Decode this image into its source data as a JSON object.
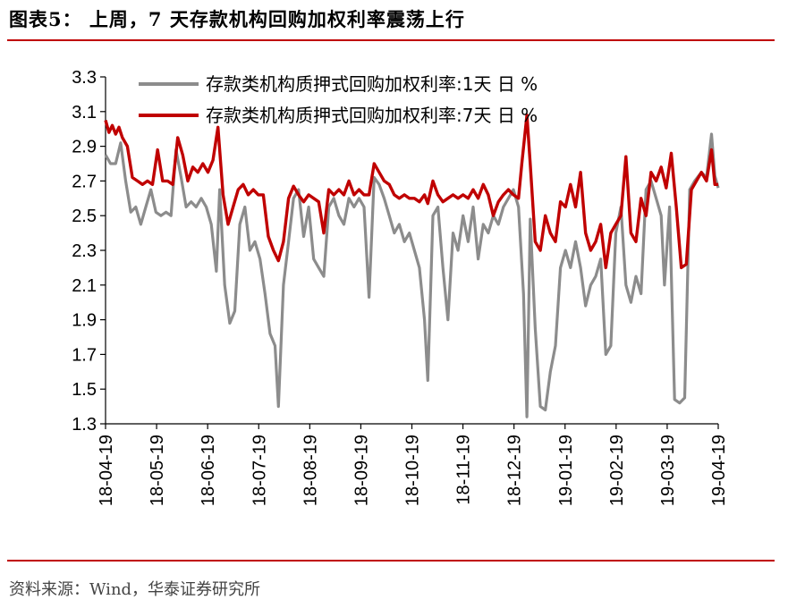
{
  "figure": {
    "title": "图表5： 上周，7 天存款机构回购加权利率震荡上行",
    "source": "资料来源：Wind，华泰证券研究所"
  },
  "colors": {
    "accent_rule": "#c00000",
    "series_1d": "#8c8c8c",
    "series_7d": "#c00000"
  },
  "chart_data": {
    "type": "line",
    "title": "",
    "xlabel": "",
    "ylabel": "",
    "ylim": [
      1.3,
      3.3
    ],
    "yticks": [
      "1.3",
      "1.5",
      "1.7",
      "1.9",
      "2.1",
      "2.3",
      "2.5",
      "2.7",
      "2.9",
      "3.1",
      "3.3"
    ],
    "x_range": [
      "2018-04-19",
      "2019-04-19"
    ],
    "xticks": [
      "18-04-19",
      "18-05-19",
      "18-06-19",
      "18-07-19",
      "18-08-19",
      "18-09-19",
      "18-10-19",
      "18-11-19",
      "18-12-19",
      "19-01-19",
      "19-02-19",
      "19-03-19",
      "19-04-19"
    ],
    "grid": false,
    "legend_position": "top",
    "series": [
      {
        "name": "存款类机构质押式回购加权利率:1天 日 %",
        "color": "#8c8c8c",
        "points": [
          [
            "2018-04-19",
            2.85
          ],
          [
            "2018-04-22",
            2.8
          ],
          [
            "2018-04-25",
            2.8
          ],
          [
            "2018-04-28",
            2.92
          ],
          [
            "2018-05-01",
            2.7
          ],
          [
            "2018-05-04",
            2.52
          ],
          [
            "2018-05-07",
            2.55
          ],
          [
            "2018-05-10",
            2.45
          ],
          [
            "2018-05-13",
            2.55
          ],
          [
            "2018-05-16",
            2.65
          ],
          [
            "2018-05-19",
            2.52
          ],
          [
            "2018-05-22",
            2.5
          ],
          [
            "2018-05-25",
            2.52
          ],
          [
            "2018-05-28",
            2.5
          ],
          [
            "2018-05-31",
            2.88
          ],
          [
            "2018-06-03",
            2.72
          ],
          [
            "2018-06-06",
            2.55
          ],
          [
            "2018-06-09",
            2.58
          ],
          [
            "2018-06-12",
            2.55
          ],
          [
            "2018-06-15",
            2.6
          ],
          [
            "2018-06-18",
            2.55
          ],
          [
            "2018-06-21",
            2.45
          ],
          [
            "2018-06-24",
            2.18
          ],
          [
            "2018-06-26",
            2.65
          ],
          [
            "2018-06-29",
            2.1
          ],
          [
            "2018-07-02",
            1.88
          ],
          [
            "2018-07-05",
            1.95
          ],
          [
            "2018-07-08",
            2.45
          ],
          [
            "2018-07-11",
            2.55
          ],
          [
            "2018-07-14",
            2.3
          ],
          [
            "2018-07-17",
            2.35
          ],
          [
            "2018-07-20",
            2.25
          ],
          [
            "2018-07-23",
            2.05
          ],
          [
            "2018-07-26",
            1.82
          ],
          [
            "2018-07-29",
            1.75
          ],
          [
            "2018-07-31",
            1.4
          ],
          [
            "2018-08-03",
            2.1
          ],
          [
            "2018-08-06",
            2.35
          ],
          [
            "2018-08-09",
            2.6
          ],
          [
            "2018-08-12",
            2.65
          ],
          [
            "2018-08-15",
            2.38
          ],
          [
            "2018-08-18",
            2.55
          ],
          [
            "2018-08-21",
            2.25
          ],
          [
            "2018-08-24",
            2.2
          ],
          [
            "2018-08-27",
            2.15
          ],
          [
            "2018-08-30",
            2.55
          ],
          [
            "2018-09-02",
            2.6
          ],
          [
            "2018-09-05",
            2.5
          ],
          [
            "2018-09-08",
            2.45
          ],
          [
            "2018-09-11",
            2.6
          ],
          [
            "2018-09-14",
            2.55
          ],
          [
            "2018-09-17",
            2.6
          ],
          [
            "2018-09-20",
            2.55
          ],
          [
            "2018-09-23",
            2.03
          ],
          [
            "2018-09-26",
            2.72
          ],
          [
            "2018-09-29",
            2.68
          ],
          [
            "2018-10-02",
            2.6
          ],
          [
            "2018-10-05",
            2.5
          ],
          [
            "2018-10-08",
            2.4
          ],
          [
            "2018-10-11",
            2.45
          ],
          [
            "2018-10-14",
            2.35
          ],
          [
            "2018-10-17",
            2.4
          ],
          [
            "2018-10-20",
            2.3
          ],
          [
            "2018-10-23",
            2.2
          ],
          [
            "2018-10-26",
            1.9
          ],
          [
            "2018-10-28",
            1.55
          ],
          [
            "2018-10-31",
            2.5
          ],
          [
            "2018-11-03",
            2.55
          ],
          [
            "2018-11-06",
            2.2
          ],
          [
            "2018-11-09",
            1.9
          ],
          [
            "2018-11-12",
            2.4
          ],
          [
            "2018-11-15",
            2.3
          ],
          [
            "2018-11-18",
            2.5
          ],
          [
            "2018-11-21",
            2.35
          ],
          [
            "2018-11-24",
            2.55
          ],
          [
            "2018-11-27",
            2.25
          ],
          [
            "2018-11-30",
            2.45
          ],
          [
            "2018-12-03",
            2.4
          ],
          [
            "2018-12-06",
            2.5
          ],
          [
            "2018-12-09",
            2.45
          ],
          [
            "2018-12-12",
            2.55
          ],
          [
            "2018-12-15",
            2.6
          ],
          [
            "2018-12-18",
            2.65
          ],
          [
            "2018-12-21",
            2.55
          ],
          [
            "2018-12-24",
            2.05
          ],
          [
            "2018-12-26",
            1.34
          ],
          [
            "2018-12-28",
            2.48
          ],
          [
            "2018-12-31",
            1.85
          ],
          [
            "2019-01-03",
            1.4
          ],
          [
            "2019-01-06",
            1.38
          ],
          [
            "2019-01-09",
            1.6
          ],
          [
            "2019-01-12",
            1.75
          ],
          [
            "2019-01-15",
            2.2
          ],
          [
            "2019-01-18",
            2.3
          ],
          [
            "2019-01-21",
            2.2
          ],
          [
            "2019-01-24",
            2.35
          ],
          [
            "2019-01-27",
            2.2
          ],
          [
            "2019-01-30",
            1.98
          ],
          [
            "2019-02-02",
            2.1
          ],
          [
            "2019-02-05",
            2.15
          ],
          [
            "2019-02-08",
            2.25
          ],
          [
            "2019-02-11",
            1.7
          ],
          [
            "2019-02-14",
            1.75
          ],
          [
            "2019-02-17",
            2.4
          ],
          [
            "2019-02-20",
            2.55
          ],
          [
            "2019-02-23",
            2.1
          ],
          [
            "2019-02-26",
            2.0
          ],
          [
            "2019-03-01",
            2.15
          ],
          [
            "2019-03-04",
            2.05
          ],
          [
            "2019-03-07",
            2.65
          ],
          [
            "2019-03-10",
            2.7
          ],
          [
            "2019-03-13",
            2.6
          ],
          [
            "2019-03-16",
            2.5
          ],
          [
            "2019-03-18",
            2.1
          ],
          [
            "2019-03-21",
            2.55
          ],
          [
            "2019-03-24",
            1.44
          ],
          [
            "2019-03-27",
            1.42
          ],
          [
            "2019-03-30",
            1.45
          ],
          [
            "2019-04-02",
            2.65
          ],
          [
            "2019-04-05",
            2.7
          ],
          [
            "2019-04-09",
            2.75
          ],
          [
            "2019-04-12",
            2.72
          ],
          [
            "2019-04-15",
            2.97
          ],
          [
            "2019-04-17",
            2.73
          ],
          [
            "2019-04-19",
            2.66
          ]
        ]
      },
      {
        "name": "存款类机构质押式回购加权利率:7天 日 %",
        "color": "#c00000",
        "points": [
          [
            "2018-04-19",
            3.05
          ],
          [
            "2018-04-21",
            2.98
          ],
          [
            "2018-04-23",
            3.02
          ],
          [
            "2018-04-25",
            2.97
          ],
          [
            "2018-04-27",
            3.01
          ],
          [
            "2018-04-29",
            2.95
          ],
          [
            "2018-05-02",
            2.9
          ],
          [
            "2018-05-05",
            2.72
          ],
          [
            "2018-05-08",
            2.7
          ],
          [
            "2018-05-11",
            2.68
          ],
          [
            "2018-05-14",
            2.7
          ],
          [
            "2018-05-17",
            2.68
          ],
          [
            "2018-05-20",
            2.88
          ],
          [
            "2018-05-23",
            2.7
          ],
          [
            "2018-05-26",
            2.7
          ],
          [
            "2018-05-29",
            2.68
          ],
          [
            "2018-06-01",
            2.95
          ],
          [
            "2018-06-04",
            2.85
          ],
          [
            "2018-06-07",
            2.7
          ],
          [
            "2018-06-10",
            2.78
          ],
          [
            "2018-06-13",
            2.75
          ],
          [
            "2018-06-16",
            2.8
          ],
          [
            "2018-06-19",
            2.75
          ],
          [
            "2018-06-22",
            2.82
          ],
          [
            "2018-06-25",
            3.01
          ],
          [
            "2018-06-28",
            2.62
          ],
          [
            "2018-07-01",
            2.45
          ],
          [
            "2018-07-04",
            2.55
          ],
          [
            "2018-07-07",
            2.65
          ],
          [
            "2018-07-10",
            2.68
          ],
          [
            "2018-07-13",
            2.62
          ],
          [
            "2018-07-16",
            2.65
          ],
          [
            "2018-07-19",
            2.62
          ],
          [
            "2018-07-22",
            2.62
          ],
          [
            "2018-07-25",
            2.38
          ],
          [
            "2018-07-28",
            2.3
          ],
          [
            "2018-07-31",
            2.24
          ],
          [
            "2018-08-03",
            2.35
          ],
          [
            "2018-08-06",
            2.6
          ],
          [
            "2018-08-09",
            2.67
          ],
          [
            "2018-08-12",
            2.62
          ],
          [
            "2018-08-15",
            2.58
          ],
          [
            "2018-08-18",
            2.62
          ],
          [
            "2018-08-21",
            2.6
          ],
          [
            "2018-08-24",
            2.58
          ],
          [
            "2018-08-27",
            2.4
          ],
          [
            "2018-08-30",
            2.65
          ],
          [
            "2018-09-02",
            2.62
          ],
          [
            "2018-09-05",
            2.65
          ],
          [
            "2018-09-08",
            2.62
          ],
          [
            "2018-09-11",
            2.7
          ],
          [
            "2018-09-14",
            2.62
          ],
          [
            "2018-09-17",
            2.65
          ],
          [
            "2018-09-20",
            2.62
          ],
          [
            "2018-09-23",
            2.62
          ],
          [
            "2018-09-26",
            2.8
          ],
          [
            "2018-09-29",
            2.75
          ],
          [
            "2018-10-02",
            2.7
          ],
          [
            "2018-10-05",
            2.68
          ],
          [
            "2018-10-08",
            2.62
          ],
          [
            "2018-10-11",
            2.6
          ],
          [
            "2018-10-14",
            2.62
          ],
          [
            "2018-10-17",
            2.6
          ],
          [
            "2018-10-20",
            2.6
          ],
          [
            "2018-10-23",
            2.58
          ],
          [
            "2018-10-26",
            2.62
          ],
          [
            "2018-10-28",
            2.57
          ],
          [
            "2018-10-31",
            2.7
          ],
          [
            "2018-11-03",
            2.62
          ],
          [
            "2018-11-06",
            2.58
          ],
          [
            "2018-11-09",
            2.6
          ],
          [
            "2018-11-12",
            2.62
          ],
          [
            "2018-11-15",
            2.6
          ],
          [
            "2018-11-18",
            2.62
          ],
          [
            "2018-11-21",
            2.6
          ],
          [
            "2018-11-24",
            2.65
          ],
          [
            "2018-11-27",
            2.6
          ],
          [
            "2018-11-30",
            2.68
          ],
          [
            "2018-12-03",
            2.62
          ],
          [
            "2018-12-06",
            2.5
          ],
          [
            "2018-12-09",
            2.58
          ],
          [
            "2018-12-12",
            2.62
          ],
          [
            "2018-12-15",
            2.65
          ],
          [
            "2018-12-18",
            2.62
          ],
          [
            "2018-12-21",
            2.6
          ],
          [
            "2018-12-23",
            2.8
          ],
          [
            "2018-12-26",
            3.08
          ],
          [
            "2018-12-28",
            2.8
          ],
          [
            "2018-12-31",
            2.35
          ],
          [
            "2019-01-03",
            2.3
          ],
          [
            "2019-01-06",
            2.5
          ],
          [
            "2019-01-09",
            2.4
          ],
          [
            "2019-01-12",
            2.35
          ],
          [
            "2019-01-15",
            2.58
          ],
          [
            "2019-01-18",
            2.55
          ],
          [
            "2019-01-21",
            2.68
          ],
          [
            "2019-01-24",
            2.55
          ],
          [
            "2019-01-27",
            2.75
          ],
          [
            "2019-01-30",
            2.4
          ],
          [
            "2019-02-02",
            2.3
          ],
          [
            "2019-02-05",
            2.35
          ],
          [
            "2019-02-08",
            2.45
          ],
          [
            "2019-02-11",
            2.2
          ],
          [
            "2019-02-14",
            2.4
          ],
          [
            "2019-02-17",
            2.45
          ],
          [
            "2019-02-20",
            2.5
          ],
          [
            "2019-02-23",
            2.84
          ],
          [
            "2019-02-26",
            2.4
          ],
          [
            "2019-03-01",
            2.35
          ],
          [
            "2019-03-04",
            2.6
          ],
          [
            "2019-03-07",
            2.5
          ],
          [
            "2019-03-10",
            2.75
          ],
          [
            "2019-03-13",
            2.7
          ],
          [
            "2019-03-16",
            2.78
          ],
          [
            "2019-03-19",
            2.66
          ],
          [
            "2019-03-22",
            2.86
          ],
          [
            "2019-03-25",
            2.55
          ],
          [
            "2019-03-28",
            2.2
          ],
          [
            "2019-03-31",
            2.22
          ],
          [
            "2019-04-03",
            2.65
          ],
          [
            "2019-04-06",
            2.7
          ],
          [
            "2019-04-09",
            2.75
          ],
          [
            "2019-04-12",
            2.7
          ],
          [
            "2019-04-15",
            2.88
          ],
          [
            "2019-04-17",
            2.68
          ],
          [
            "2019-04-19",
            2.68
          ]
        ]
      }
    ]
  }
}
